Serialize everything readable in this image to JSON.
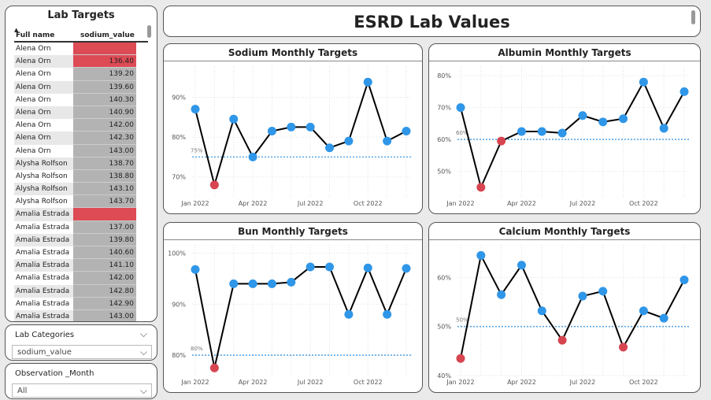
{
  "table": {
    "title": "Lab Targets",
    "col1_header": "Full name",
    "col2_header": "sodium_value",
    "sort_icon": "sort-caret-icon",
    "low_color": "#dd4b55",
    "rows": [
      {
        "name": "Alena Orn",
        "value": "",
        "flag": "red"
      },
      {
        "name": "Alena Orn",
        "value": "136.40",
        "flag": "red"
      },
      {
        "name": "Alena Orn",
        "value": "139.20",
        "flag": ""
      },
      {
        "name": "Alena Orn",
        "value": "139.60",
        "flag": ""
      },
      {
        "name": "Alena Orn",
        "value": "140.30",
        "flag": ""
      },
      {
        "name": "Alena Orn",
        "value": "140.90",
        "flag": ""
      },
      {
        "name": "Alena Orn",
        "value": "142.00",
        "flag": ""
      },
      {
        "name": "Alena Orn",
        "value": "142.30",
        "flag": ""
      },
      {
        "name": "Alena Orn",
        "value": "143.00",
        "flag": ""
      },
      {
        "name": "Alysha Rolfson",
        "value": "138.70",
        "flag": ""
      },
      {
        "name": "Alysha Rolfson",
        "value": "138.80",
        "flag": ""
      },
      {
        "name": "Alysha Rolfson",
        "value": "143.10",
        "flag": ""
      },
      {
        "name": "Alysha Rolfson",
        "value": "143.70",
        "flag": ""
      },
      {
        "name": "Amalia Estrada",
        "value": "",
        "flag": "red"
      },
      {
        "name": "Amalia Estrada",
        "value": "137.00",
        "flag": ""
      },
      {
        "name": "Amalia Estrada",
        "value": "139.80",
        "flag": ""
      },
      {
        "name": "Amalia Estrada",
        "value": "140.60",
        "flag": ""
      },
      {
        "name": "Amalia Estrada",
        "value": "141.10",
        "flag": ""
      },
      {
        "name": "Amalia Estrada",
        "value": "142.00",
        "flag": ""
      },
      {
        "name": "Amalia Estrada",
        "value": "142.80",
        "flag": ""
      },
      {
        "name": "Amalia Estrada",
        "value": "142.90",
        "flag": ""
      },
      {
        "name": "Amalia Estrada",
        "value": "143.00",
        "flag": ""
      }
    ]
  },
  "slicers": {
    "category": {
      "label": "Lab Categories",
      "value": "sodium_value"
    },
    "month": {
      "label": "Observation _Month",
      "value": "All"
    }
  },
  "header": {
    "title": "ESRD Lab Values"
  },
  "colors": {
    "line": "#000000",
    "point": "#2f96e8",
    "low_point": "#d64550",
    "target": "#5aa9ea"
  },
  "chart_data": [
    {
      "id": "sodium",
      "type": "line",
      "title": "Sodium Monthly Targets",
      "x_ticks": [
        "Jan 2022",
        "Apr 2022",
        "Jul 2022",
        "Oct 2022"
      ],
      "x_tick_index": [
        0,
        3,
        6,
        9
      ],
      "y_ticks": [
        70,
        80,
        90
      ],
      "y_tick_labels": [
        "70%",
        "80%",
        "90%"
      ],
      "ylim": [
        65,
        97
      ],
      "target": 75,
      "target_label": "75%",
      "values": [
        87,
        68,
        84.5,
        75,
        81.5,
        82.5,
        82.5,
        77.3,
        79,
        93.8,
        79,
        81.5
      ],
      "low_points": [
        1
      ]
    },
    {
      "id": "albumin",
      "type": "line",
      "title": "Albumin Monthly Targets",
      "x_ticks": [
        "Jan 2022",
        "Apr 2022",
        "Jul 2022",
        "Oct 2022"
      ],
      "x_tick_index": [
        0,
        3,
        6,
        9
      ],
      "y_ticks": [
        50,
        60,
        70,
        80
      ],
      "y_tick_labels": [
        "50%",
        "60%",
        "70%",
        "80%"
      ],
      "ylim": [
        42,
        82
      ],
      "target": 60,
      "target_label": "60%",
      "values": [
        70,
        45,
        59.5,
        62.5,
        62.5,
        62,
        67.5,
        65.5,
        66.5,
        78,
        63.5,
        75
      ],
      "low_points": [
        1,
        2
      ]
    },
    {
      "id": "bun",
      "type": "line",
      "title": "Bun Monthly Targets",
      "x_ticks": [
        "Jan 2022",
        "Apr 2022",
        "Jul 2022",
        "Oct 2022"
      ],
      "x_tick_index": [
        0,
        3,
        6,
        9
      ],
      "y_ticks": [
        80,
        90,
        100
      ],
      "y_tick_labels": [
        "80%",
        "90%",
        "100%"
      ],
      "ylim": [
        76,
        101
      ],
      "target": 80,
      "target_label": "80%",
      "values": [
        96.8,
        77.5,
        94,
        94,
        94,
        94.3,
        97.3,
        97.3,
        88,
        97.1,
        88,
        97
      ],
      "low_points": [
        1
      ]
    },
    {
      "id": "calcium",
      "type": "line",
      "title": "Calcium Monthly Targets",
      "x_ticks": [
        "Jan 2022",
        "Apr 2022",
        "Jul 2022",
        "Oct 2022"
      ],
      "x_tick_index": [
        0,
        3,
        6,
        9
      ],
      "y_ticks": [
        40,
        50,
        60
      ],
      "y_tick_labels": [
        "40%",
        "50%",
        "60%"
      ],
      "ylim": [
        40,
        66
      ],
      "target": 50,
      "target_label": "50%",
      "values": [
        43.5,
        64.5,
        56.5,
        62.5,
        53.2,
        47.2,
        56.2,
        57.2,
        45.8,
        53.2,
        51.7,
        59.5
      ],
      "low_points": [
        0,
        5,
        8
      ]
    }
  ]
}
